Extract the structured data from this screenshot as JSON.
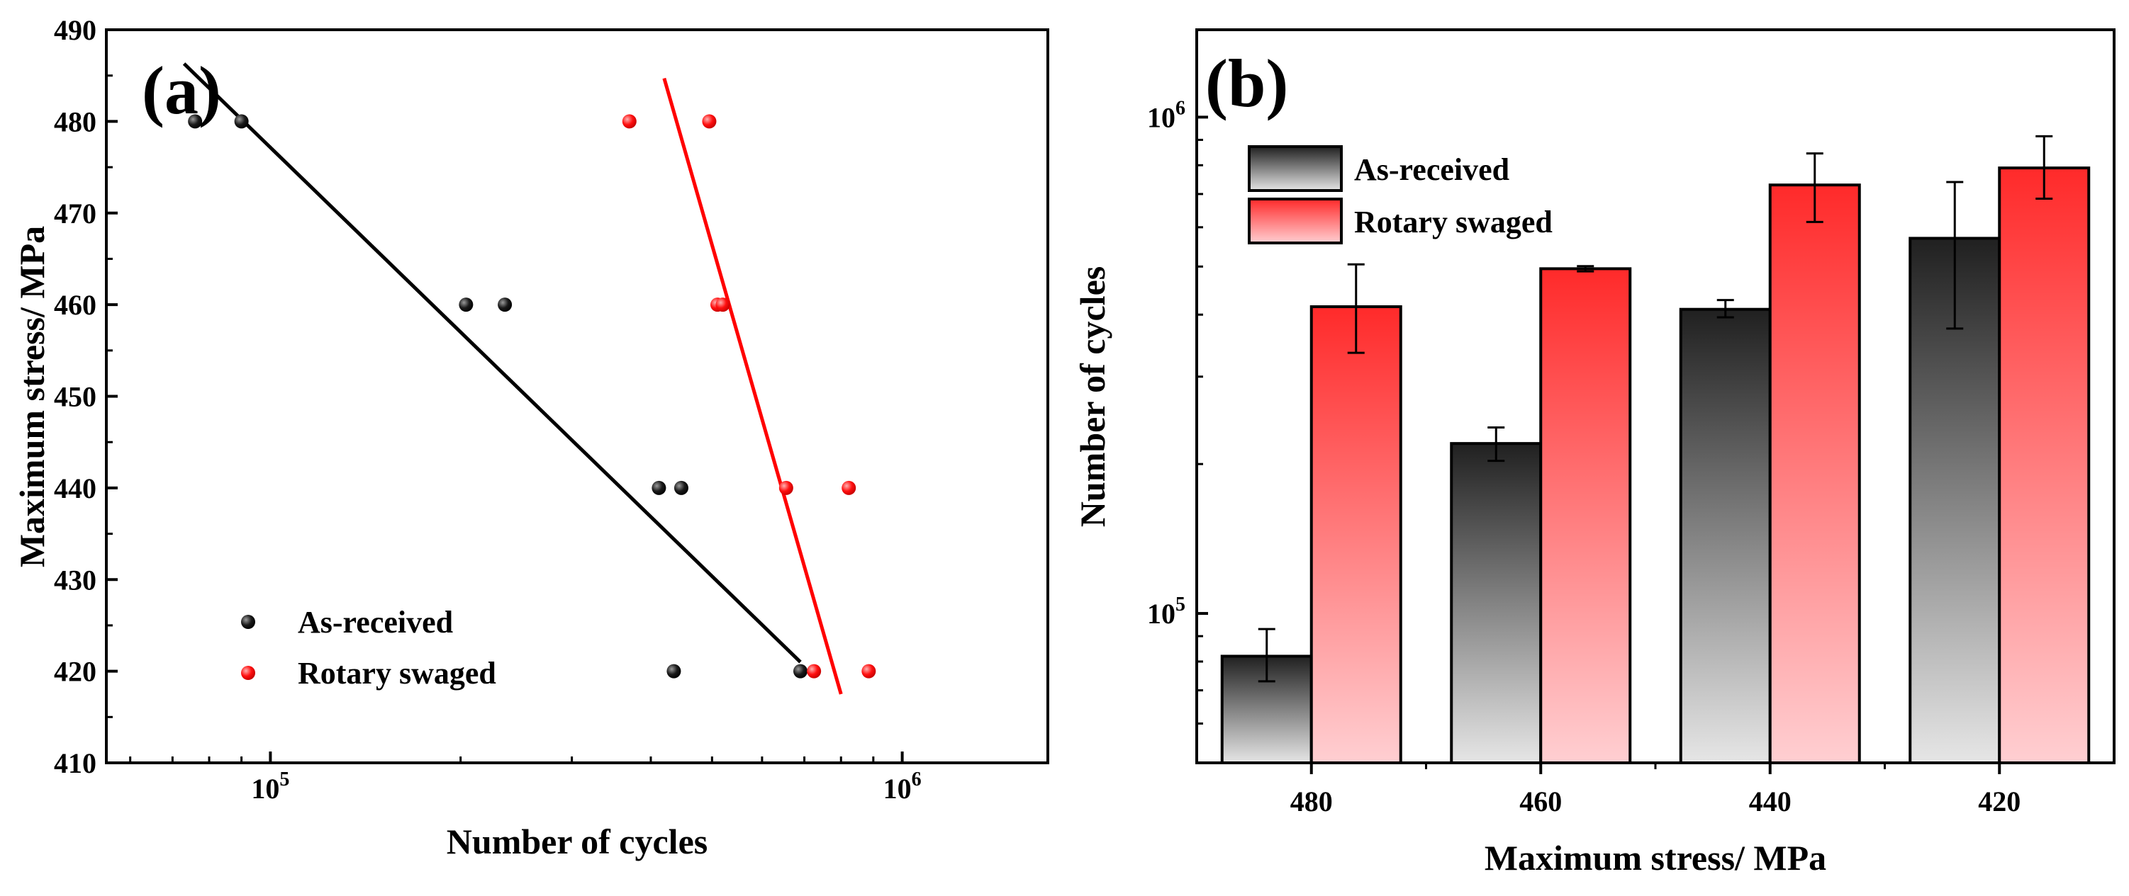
{
  "chart_data": [
    {
      "panel": "(a)",
      "type": "scatter",
      "xscale": "log",
      "xlabel": "Number of cycles",
      "ylabel": "Maximum stress/ MPa",
      "xlim": [
        55000,
        1700000
      ],
      "ylim": [
        410,
        490
      ],
      "xtick_labels": [
        {
          "value": 100000,
          "base": "10",
          "exp": "5"
        },
        {
          "value": 1000000,
          "base": "10",
          "exp": "6"
        }
      ],
      "yticks": [
        410,
        420,
        430,
        440,
        450,
        460,
        470,
        480,
        490
      ],
      "legend_position": "bottom-left",
      "series": [
        {
          "name": "As-received",
          "color": "#000000",
          "points": [
            [
              76000,
              480
            ],
            [
              90000,
              480
            ],
            [
              204000,
              460
            ],
            [
              235000,
              460
            ],
            [
              412000,
              440
            ],
            [
              447000,
              440
            ],
            [
              435000,
              420
            ],
            [
              690000,
              420
            ]
          ],
          "fit": [
            [
              73000,
              486.3
            ],
            [
              690000,
              421
            ]
          ]
        },
        {
          "name": "Rotary swaged",
          "color": "#ff0000",
          "points": [
            [
              370000,
              480
            ],
            [
              495000,
              480
            ],
            [
              510000,
              460
            ],
            [
              520000,
              460
            ],
            [
              655000,
              440
            ],
            [
              823000,
              440
            ],
            [
              725000,
              420
            ],
            [
              885000,
              420
            ]
          ],
          "fit": [
            [
              420000,
              484.7
            ],
            [
              800000,
              417.5
            ]
          ]
        }
      ]
    },
    {
      "panel": "(b)",
      "type": "bar",
      "yscale": "log",
      "xlabel": "Maximum stress/ MPa",
      "ylabel": "Number of cycles",
      "ylim": [
        50000,
        1500000
      ],
      "ytick_labels": [
        {
          "value": 100000,
          "base": "10",
          "exp": "5"
        },
        {
          "value": 1000000,
          "base": "10",
          "exp": "6"
        }
      ],
      "categories": [
        "480",
        "460",
        "440",
        "420"
      ],
      "legend_position": "top-left",
      "series": [
        {
          "name": "As-received",
          "color": "#2a2a2a",
          "values": [
            82000,
            220000,
            410000,
            570000
          ],
          "errors": [
            [
              73000,
              93000
            ],
            [
              203000,
              237000
            ],
            [
              395000,
              428000
            ],
            [
              375000,
              740000
            ]
          ]
        },
        {
          "name": "Rotary swaged",
          "color": "#ff3030",
          "values": [
            415000,
            495000,
            730000,
            790000
          ],
          "errors": [
            [
              335000,
              505000
            ],
            [
              489000,
              501000
            ],
            [
              615000,
              845000
            ],
            [
              685000,
              915000
            ]
          ]
        }
      ]
    }
  ]
}
